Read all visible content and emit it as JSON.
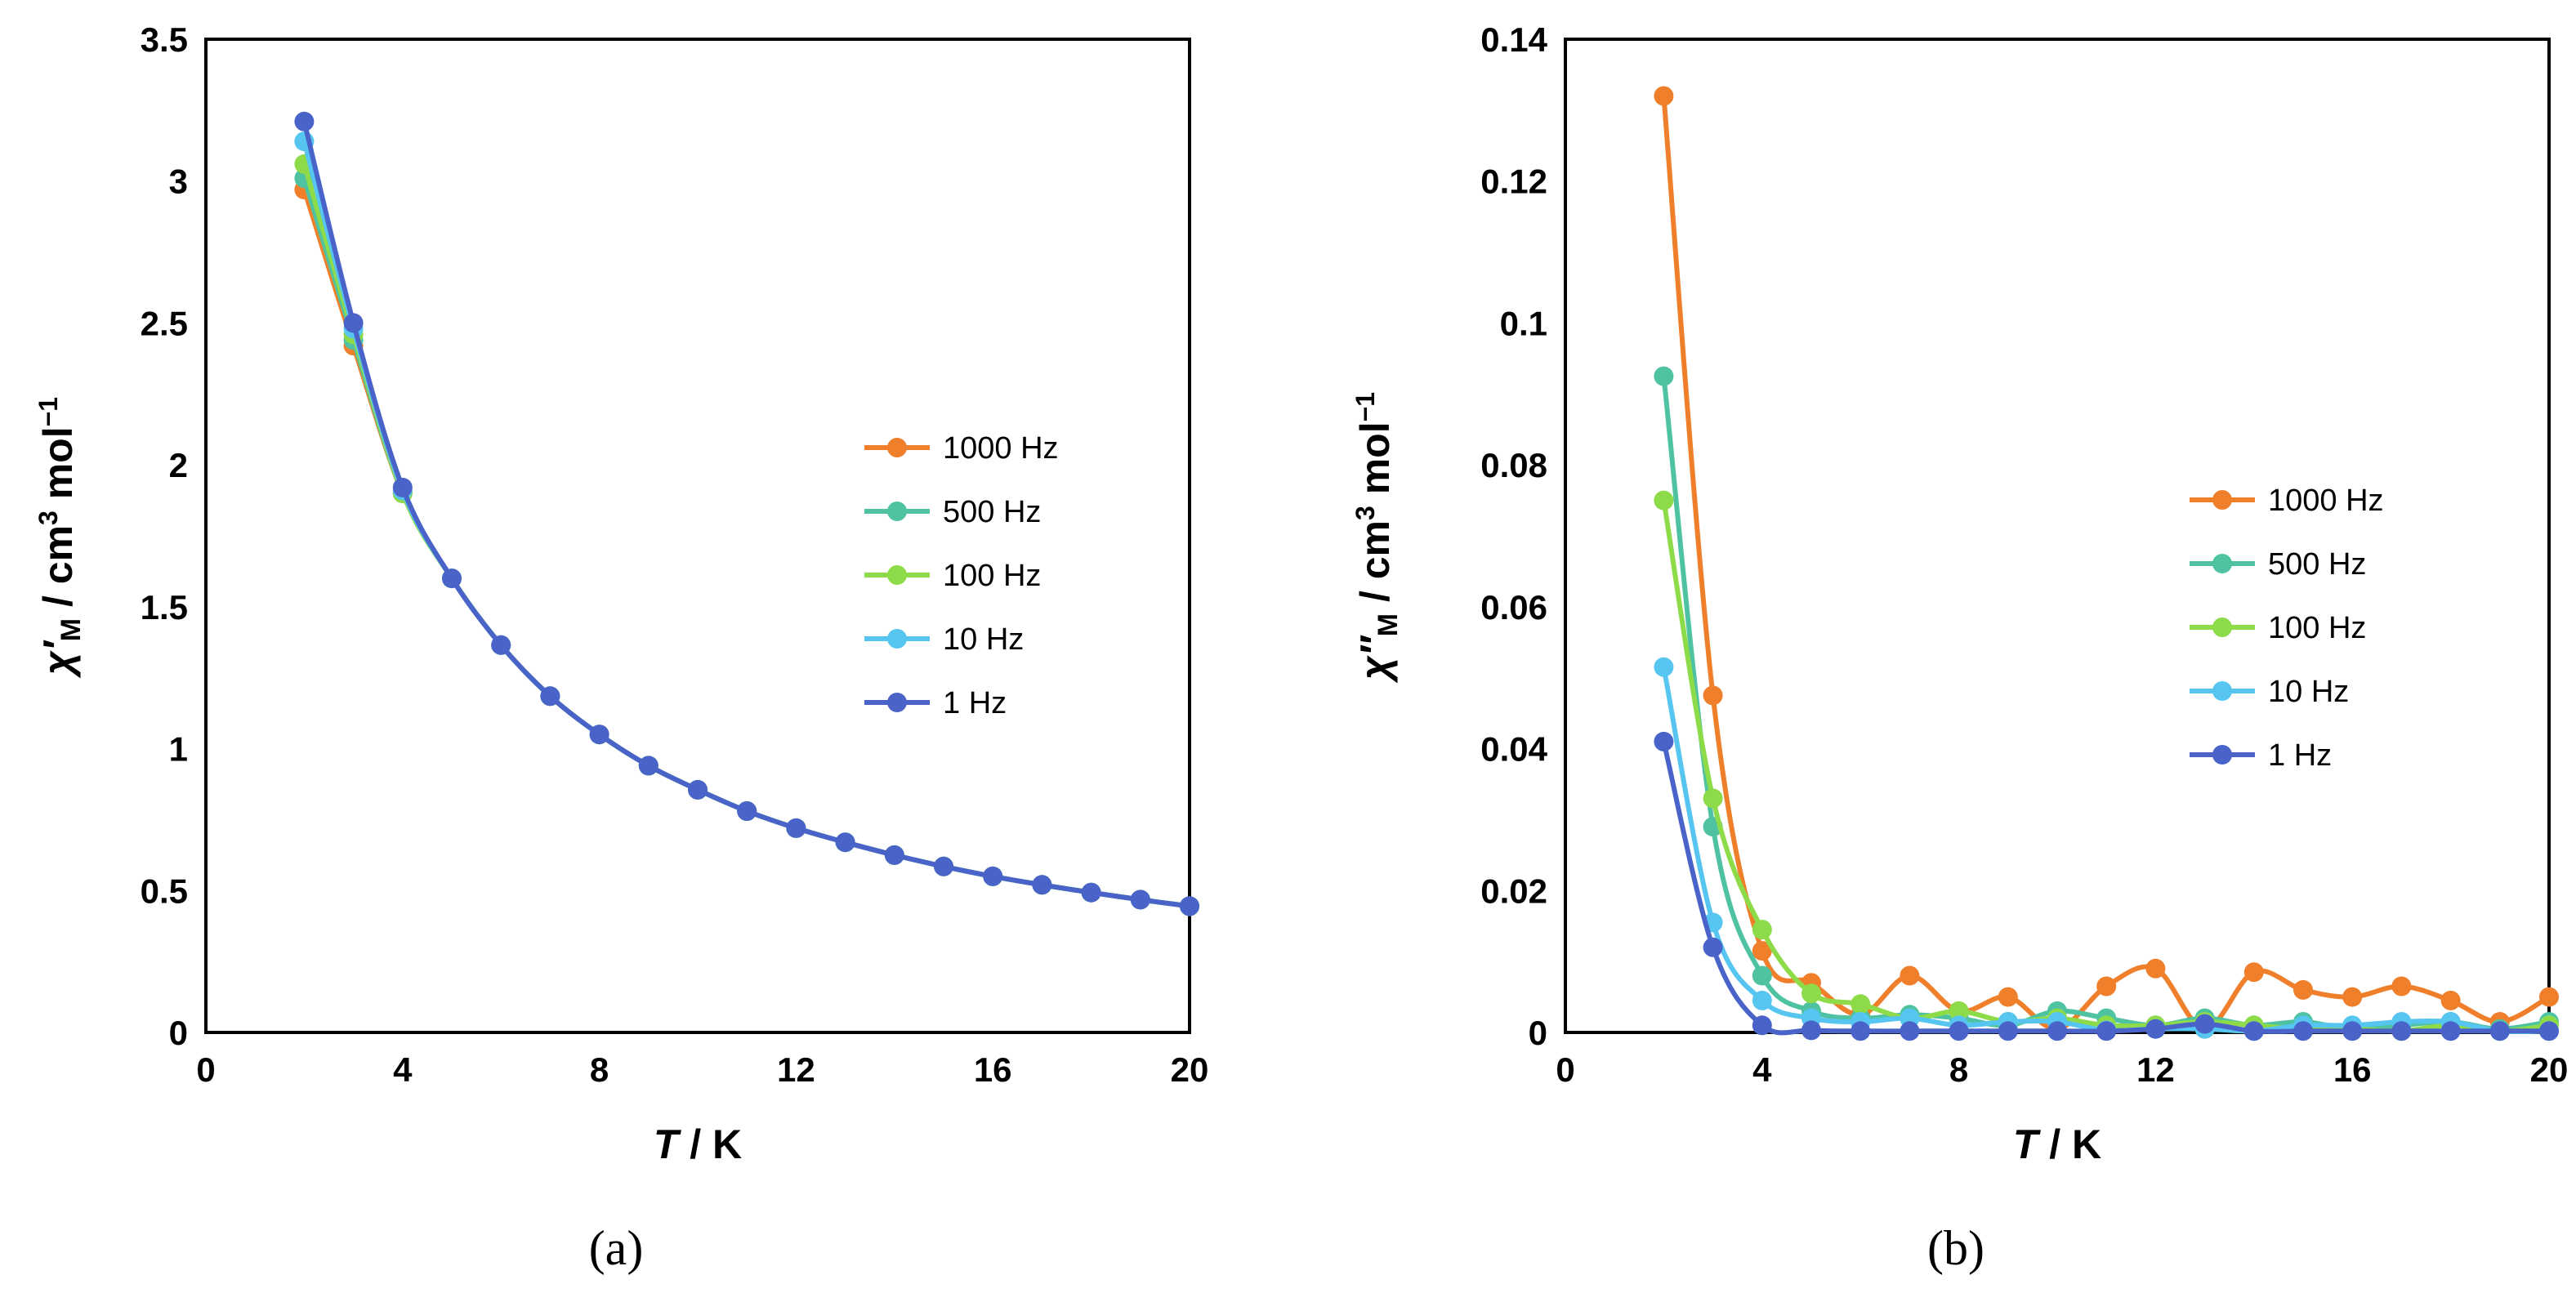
{
  "chart_data": [
    {
      "type": "line",
      "panel_label": "(a)",
      "xlabel": "T / K",
      "xlabel_italic": "T",
      "xlabel_rest": " / K",
      "ylabel": "χ′M / cm3 mol−1",
      "ylabel_parts": {
        "chi": "χ′",
        "sub": "M",
        "unit_a": " / cm",
        "sup": "3",
        "unit_b": " mol",
        "sup2": "−1"
      },
      "xlim": [
        0,
        20
      ],
      "ylim": [
        0,
        3.5
      ],
      "xticks": [
        "0",
        "4",
        "8",
        "12",
        "16",
        "20"
      ],
      "yticks": [
        "0",
        "0.5",
        "1",
        "1.5",
        "2",
        "2.5",
        "3",
        "3.5"
      ],
      "legend_placement": "center-right",
      "x": [
        2,
        3,
        4,
        5,
        6,
        7,
        8,
        9,
        10,
        11,
        12,
        13,
        14,
        15,
        16,
        17,
        18,
        19,
        20
      ],
      "series": [
        {
          "name": "1000 Hz",
          "color": "#F07F2B",
          "values": [
            2.97,
            2.42,
            1.9,
            1.6,
            1.365,
            1.185,
            1.05,
            0.94,
            0.855,
            0.78,
            0.72,
            0.67,
            0.625,
            0.585,
            0.55,
            0.52,
            0.493,
            0.468,
            0.445
          ]
        },
        {
          "name": "500 Hz",
          "color": "#4FC3A1",
          "values": [
            3.01,
            2.44,
            1.9,
            1.6,
            1.365,
            1.185,
            1.05,
            0.94,
            0.855,
            0.78,
            0.72,
            0.67,
            0.625,
            0.585,
            0.55,
            0.52,
            0.493,
            0.468,
            0.445
          ]
        },
        {
          "name": "100 Hz",
          "color": "#8EDB4A",
          "values": [
            3.06,
            2.46,
            1.9,
            1.6,
            1.365,
            1.185,
            1.05,
            0.94,
            0.855,
            0.78,
            0.72,
            0.67,
            0.625,
            0.585,
            0.55,
            0.52,
            0.493,
            0.468,
            0.445
          ]
        },
        {
          "name": "10 Hz",
          "color": "#56C5F0",
          "values": [
            3.14,
            2.48,
            1.91,
            1.6,
            1.365,
            1.185,
            1.05,
            0.94,
            0.855,
            0.78,
            0.72,
            0.67,
            0.625,
            0.585,
            0.55,
            0.52,
            0.493,
            0.468,
            0.445
          ]
        },
        {
          "name": "1 Hz",
          "color": "#4A63C8",
          "values": [
            3.21,
            2.5,
            1.92,
            1.6,
            1.365,
            1.185,
            1.05,
            0.94,
            0.855,
            0.78,
            0.72,
            0.67,
            0.625,
            0.585,
            0.55,
            0.52,
            0.493,
            0.468,
            0.445
          ]
        }
      ]
    },
    {
      "type": "line",
      "panel_label": "(b)",
      "xlabel": "T / K",
      "xlabel_italic": "T",
      "xlabel_rest": " / K",
      "ylabel": "χ″M / cm3 mol−1",
      "ylabel_parts": {
        "chi": "χ″",
        "sub": "M",
        "unit_a": " / cm",
        "sup": "3",
        "unit_b": " mol",
        "sup2": "−1"
      },
      "xlim": [
        0,
        20
      ],
      "ylim": [
        0,
        0.14
      ],
      "xticks": [
        "0",
        "4",
        "8",
        "12",
        "16",
        "20"
      ],
      "yticks": [
        "0",
        "0.02",
        "0.04",
        "0.06",
        "0.08",
        "0.1",
        "0.12",
        "0.14"
      ],
      "legend_placement": "center-right",
      "x": [
        2,
        3,
        4,
        5,
        6,
        7,
        8,
        9,
        10,
        11,
        12,
        13,
        14,
        15,
        16,
        17,
        18,
        19,
        20
      ],
      "series": [
        {
          "name": "1000 Hz",
          "color": "#F07F2B",
          "values": [
            0.132,
            0.0475,
            0.0115,
            0.007,
            0.0025,
            0.008,
            0.003,
            0.005,
            0.0005,
            0.0065,
            0.009,
            0.0005,
            0.0085,
            0.006,
            0.005,
            0.0065,
            0.0045,
            0.0015,
            0.005
          ]
        },
        {
          "name": "500 Hz",
          "color": "#4FC3A1",
          "values": [
            0.0925,
            0.029,
            0.008,
            0.003,
            0.002,
            0.0025,
            0.002,
            0.001,
            0.003,
            0.002,
            0.001,
            0.002,
            0.001,
            0.0015,
            0.0005,
            0.001,
            0.0015,
            0.0005,
            0.0015
          ]
        },
        {
          "name": "100 Hz",
          "color": "#8EDB4A",
          "values": [
            0.075,
            0.033,
            0.0145,
            0.0055,
            0.004,
            0.002,
            0.003,
            0.0015,
            0.002,
            0.001,
            0.001,
            0.0015,
            0.001,
            0.0005,
            0.0005,
            0.0002,
            0.001,
            0.0002,
            0.001
          ]
        },
        {
          "name": "10 Hz",
          "color": "#56C5F0",
          "values": [
            0.0515,
            0.0155,
            0.0045,
            0.002,
            0.0015,
            0.002,
            0.001,
            0.0015,
            0.0015,
            0.0003,
            0.0005,
            0.0005,
            0.0002,
            0.001,
            0.001,
            0.0015,
            0.0015,
            0.0002,
            0.0002
          ]
        },
        {
          "name": "1 Hz",
          "color": "#4A63C8",
          "values": [
            0.041,
            0.012,
            0.001,
            0.0003,
            0.0002,
            0.0002,
            0.0002,
            0.0002,
            0.0002,
            0.0002,
            0.0005,
            0.0012,
            0.0002,
            0.0002,
            0.0002,
            0.0002,
            0.0002,
            0.0002,
            0.0002
          ]
        }
      ]
    }
  ]
}
